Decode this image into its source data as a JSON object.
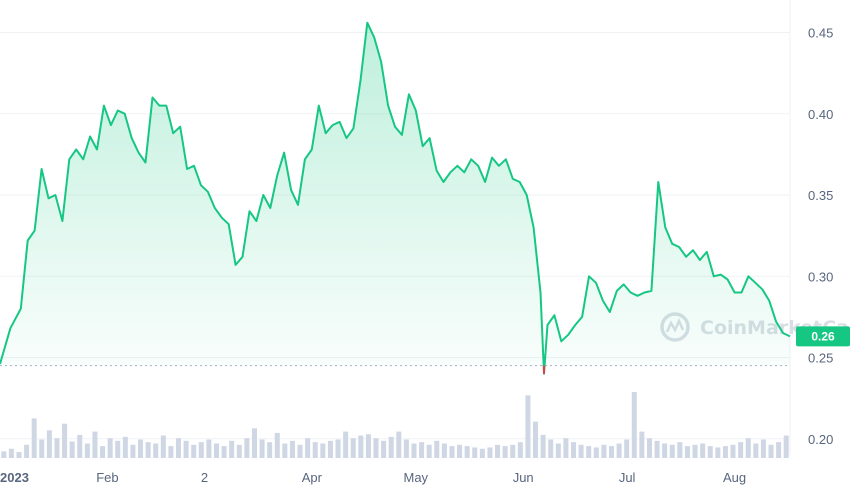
{
  "chart_data": {
    "type": "area",
    "y_ticks": [
      "0.45",
      "0.40",
      "0.35",
      "0.30",
      "0.25",
      "0.20"
    ],
    "x_ticks": [
      "2023",
      "Feb",
      "2",
      "Apr",
      "May",
      "Jun",
      "Jul",
      "Aug"
    ],
    "x_tick_days": [
      0,
      31,
      59,
      90,
      120,
      151,
      181,
      212
    ],
    "ylim": [
      0.19,
      0.47
    ],
    "xlim": [
      0,
      228
    ],
    "baseline_value": 0.245,
    "current_price_label": "0.26",
    "current_price_value": 0.263,
    "watermark": "CoinMarketCap",
    "grid": true,
    "colors": {
      "line": "#16c784",
      "fill_top": "#16c784",
      "volume": "#cfd6e4",
      "dip_marker": "#ea3943",
      "tag": "#16c784"
    },
    "series": [
      {
        "price": [
          [
            0,
            0.246
          ],
          [
            3,
            0.268
          ],
          [
            6,
            0.28
          ],
          [
            8,
            0.322
          ],
          [
            10,
            0.328
          ],
          [
            12,
            0.366
          ],
          [
            14,
            0.348
          ],
          [
            16,
            0.35
          ],
          [
            18,
            0.334
          ],
          [
            20,
            0.372
          ],
          [
            22,
            0.378
          ],
          [
            24,
            0.372
          ],
          [
            26,
            0.386
          ],
          [
            28,
            0.378
          ],
          [
            30,
            0.405
          ],
          [
            32,
            0.393
          ],
          [
            34,
            0.402
          ],
          [
            36,
            0.4
          ],
          [
            38,
            0.385
          ],
          [
            40,
            0.376
          ],
          [
            42,
            0.37
          ],
          [
            44,
            0.41
          ],
          [
            46,
            0.405
          ],
          [
            48,
            0.405
          ],
          [
            50,
            0.388
          ],
          [
            52,
            0.392
          ],
          [
            54,
            0.366
          ],
          [
            56,
            0.368
          ],
          [
            58,
            0.356
          ],
          [
            60,
            0.352
          ],
          [
            62,
            0.342
          ],
          [
            64,
            0.336
          ],
          [
            66,
            0.332
          ],
          [
            68,
            0.307
          ],
          [
            70,
            0.312
          ],
          [
            72,
            0.34
          ],
          [
            74,
            0.334
          ],
          [
            76,
            0.35
          ],
          [
            78,
            0.342
          ],
          [
            80,
            0.362
          ],
          [
            82,
            0.376
          ],
          [
            84,
            0.353
          ],
          [
            86,
            0.344
          ],
          [
            88,
            0.372
          ],
          [
            90,
            0.378
          ],
          [
            92,
            0.405
          ],
          [
            94,
            0.388
          ],
          [
            96,
            0.393
          ],
          [
            98,
            0.395
          ],
          [
            100,
            0.385
          ],
          [
            102,
            0.391
          ],
          [
            104,
            0.42
          ],
          [
            106,
            0.456
          ],
          [
            108,
            0.447
          ],
          [
            110,
            0.432
          ],
          [
            112,
            0.405
          ],
          [
            114,
            0.392
          ],
          [
            116,
            0.387
          ],
          [
            118,
            0.412
          ],
          [
            120,
            0.402
          ],
          [
            122,
            0.38
          ],
          [
            124,
            0.385
          ],
          [
            126,
            0.365
          ],
          [
            128,
            0.358
          ],
          [
            130,
            0.364
          ],
          [
            132,
            0.368
          ],
          [
            134,
            0.364
          ],
          [
            136,
            0.372
          ],
          [
            138,
            0.368
          ],
          [
            140,
            0.358
          ],
          [
            142,
            0.373
          ],
          [
            144,
            0.368
          ],
          [
            146,
            0.372
          ],
          [
            148,
            0.36
          ],
          [
            150,
            0.358
          ],
          [
            152,
            0.35
          ],
          [
            154,
            0.33
          ],
          [
            156,
            0.29
          ],
          [
            157,
            0.24
          ],
          [
            158,
            0.27
          ],
          [
            160,
            0.276
          ],
          [
            162,
            0.26
          ],
          [
            164,
            0.264
          ],
          [
            166,
            0.27
          ],
          [
            168,
            0.275
          ],
          [
            170,
            0.3
          ],
          [
            172,
            0.296
          ],
          [
            174,
            0.285
          ],
          [
            176,
            0.278
          ],
          [
            178,
            0.291
          ],
          [
            180,
            0.295
          ],
          [
            182,
            0.29
          ],
          [
            184,
            0.288
          ],
          [
            186,
            0.29
          ],
          [
            188,
            0.291
          ],
          [
            190,
            0.358
          ],
          [
            192,
            0.33
          ],
          [
            194,
            0.32
          ],
          [
            196,
            0.318
          ],
          [
            198,
            0.312
          ],
          [
            200,
            0.316
          ],
          [
            202,
            0.31
          ],
          [
            204,
            0.315
          ],
          [
            206,
            0.3
          ],
          [
            208,
            0.301
          ],
          [
            210,
            0.298
          ],
          [
            212,
            0.29
          ],
          [
            214,
            0.29
          ],
          [
            216,
            0.3
          ],
          [
            218,
            0.296
          ],
          [
            220,
            0.292
          ],
          [
            222,
            0.285
          ],
          [
            224,
            0.272
          ],
          [
            226,
            0.265
          ],
          [
            228,
            0.263
          ]
        ],
        "volume_rel": [
          0.1,
          0.14,
          0.09,
          0.2,
          0.6,
          0.28,
          0.42,
          0.3,
          0.52,
          0.25,
          0.35,
          0.22,
          0.4,
          0.18,
          0.3,
          0.26,
          0.32,
          0.2,
          0.28,
          0.24,
          0.22,
          0.34,
          0.18,
          0.3,
          0.26,
          0.2,
          0.24,
          0.28,
          0.22,
          0.18,
          0.26,
          0.2,
          0.3,
          0.45,
          0.28,
          0.24,
          0.38,
          0.22,
          0.26,
          0.2,
          0.3,
          0.24,
          0.22,
          0.26,
          0.28,
          0.4,
          0.3,
          0.34,
          0.36,
          0.3,
          0.26,
          0.32,
          0.4,
          0.28,
          0.22,
          0.24,
          0.2,
          0.26,
          0.22,
          0.18,
          0.2,
          0.18,
          0.16,
          0.14,
          0.16,
          0.2,
          0.18,
          0.2,
          0.24,
          0.95,
          0.55,
          0.35,
          0.28,
          0.22,
          0.3,
          0.24,
          0.2,
          0.18,
          0.16,
          0.2,
          0.18,
          0.22,
          0.28,
          1.0,
          0.4,
          0.3,
          0.26,
          0.22,
          0.2,
          0.24,
          0.18,
          0.2,
          0.22,
          0.18,
          0.16,
          0.18,
          0.2,
          0.24,
          0.3,
          0.22,
          0.28,
          0.2,
          0.24,
          0.34
        ]
      }
    ]
  }
}
